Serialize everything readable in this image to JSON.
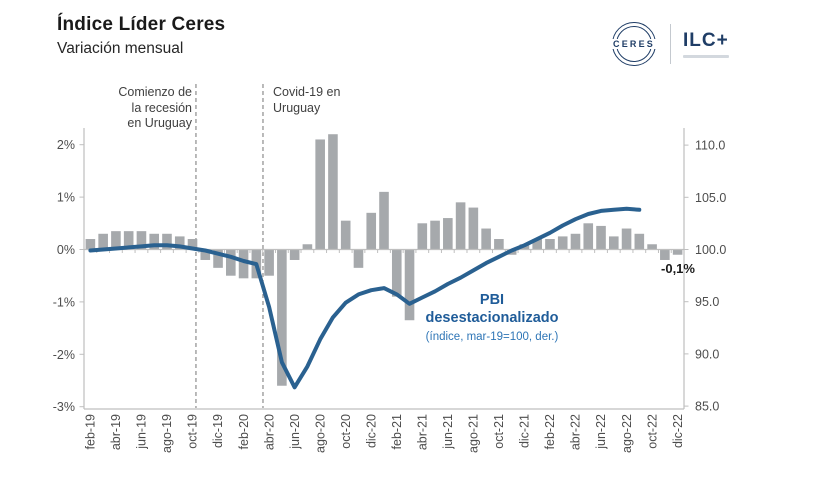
{
  "header": {
    "title": "Índice Líder Ceres",
    "subtitle": "Variación mensual"
  },
  "logo": {
    "ceres": "CERES",
    "ilc": "ILC+"
  },
  "annotations": {
    "recession": {
      "line1": "Comienzo de",
      "line2": "la recesión",
      "line3": "en Uruguay"
    },
    "covid": {
      "line1": "Covid-19 en",
      "line2": "Uruguay"
    },
    "pbi_label_line1": "PBI",
    "pbi_label_line2": "desestacionalizado",
    "pbi_sublabel": "(índice, mar-19=100, der.)",
    "last_bar_value": "-0,1%"
  },
  "chart_data": {
    "type": "combo-bar-line",
    "x": [
      "feb-19",
      "mar-19",
      "abr-19",
      "may-19",
      "jun-19",
      "jul-19",
      "ago-19",
      "sep-19",
      "oct-19",
      "nov-19",
      "dic-19",
      "ene-20",
      "feb-20",
      "mar-20",
      "abr-20",
      "may-20",
      "jun-20",
      "jul-20",
      "ago-20",
      "sep-20",
      "oct-20",
      "nov-20",
      "dic-20",
      "ene-21",
      "feb-21",
      "mar-21",
      "abr-21",
      "may-21",
      "jun-21",
      "jul-21",
      "ago-21",
      "sep-21",
      "oct-21",
      "nov-21",
      "dic-21",
      "ene-22",
      "feb-22",
      "mar-22",
      "abr-22",
      "may-22",
      "jun-22",
      "jul-22",
      "ago-22",
      "sep-22",
      "oct-22",
      "nov-22",
      "dic-22"
    ],
    "series": [
      {
        "name": "Índice Líder Ceres (variación mensual, izq.)",
        "type": "bar",
        "axis": "left",
        "unit": "%",
        "color": "#a6a9ac",
        "values": [
          0.2,
          0.3,
          0.35,
          0.35,
          0.35,
          0.3,
          0.3,
          0.25,
          0.2,
          -0.2,
          -0.35,
          -0.5,
          -0.55,
          -0.55,
          -0.5,
          -2.6,
          -0.2,
          0.1,
          2.1,
          2.2,
          0.55,
          -0.35,
          0.7,
          1.1,
          -0.9,
          -1.35,
          0.5,
          0.55,
          0.6,
          0.9,
          0.8,
          0.4,
          0.2,
          -0.1,
          0.1,
          0.2,
          0.2,
          0.25,
          0.3,
          0.5,
          0.45,
          0.25,
          0.4,
          0.3,
          0.1,
          -0.2,
          -0.1
        ]
      },
      {
        "name": "PBI desestacionalizado (índice, mar-19=100, der.)",
        "type": "line",
        "axis": "right",
        "color": "#2a6190",
        "values": [
          99.9,
          100.0,
          100.1,
          100.2,
          100.3,
          100.4,
          100.4,
          100.3,
          100.1,
          99.9,
          99.6,
          99.3,
          98.9,
          98.6,
          94.5,
          89.2,
          86.8,
          88.8,
          91.4,
          93.5,
          94.9,
          95.7,
          96.1,
          96.3,
          95.7,
          94.8,
          95.4,
          96.0,
          96.7,
          97.3,
          98.0,
          98.7,
          99.3,
          99.9,
          100.4,
          101.0,
          101.6,
          102.3,
          102.9,
          103.4,
          103.7,
          103.8,
          103.9,
          103.8,
          null,
          null,
          null
        ]
      }
    ],
    "left_axis": {
      "ticks": [
        {
          "label": "2%",
          "v": 2
        },
        {
          "label": "1%",
          "v": 1
        },
        {
          "label": "0%",
          "v": 0
        },
        {
          "label": "-1%",
          "v": -1
        },
        {
          "label": "-2%",
          "v": -2
        },
        {
          "label": "-3%",
          "v": -3
        }
      ],
      "range": [
        -3,
        2.5
      ]
    },
    "right_axis": {
      "ticks": [
        {
          "label": "110.0",
          "v": 110
        },
        {
          "label": "105.0",
          "v": 105
        },
        {
          "label": "100.0",
          "v": 100
        },
        {
          "label": "95.0",
          "v": 95
        },
        {
          "label": "90.0",
          "v": 90
        },
        {
          "label": "85.0",
          "v": 85
        }
      ],
      "range": [
        85,
        111
      ]
    },
    "x_tick_every": 2,
    "event_lines": [
      {
        "name": "comienzo-recesion",
        "x_slot": 8.77
      },
      {
        "name": "covid-19",
        "x_slot": 14.02
      }
    ],
    "grid": "off",
    "axis_color": "#bfbfbf",
    "dash_color": "#8c8c8c",
    "tick_text_color": "#4d4d4d"
  }
}
